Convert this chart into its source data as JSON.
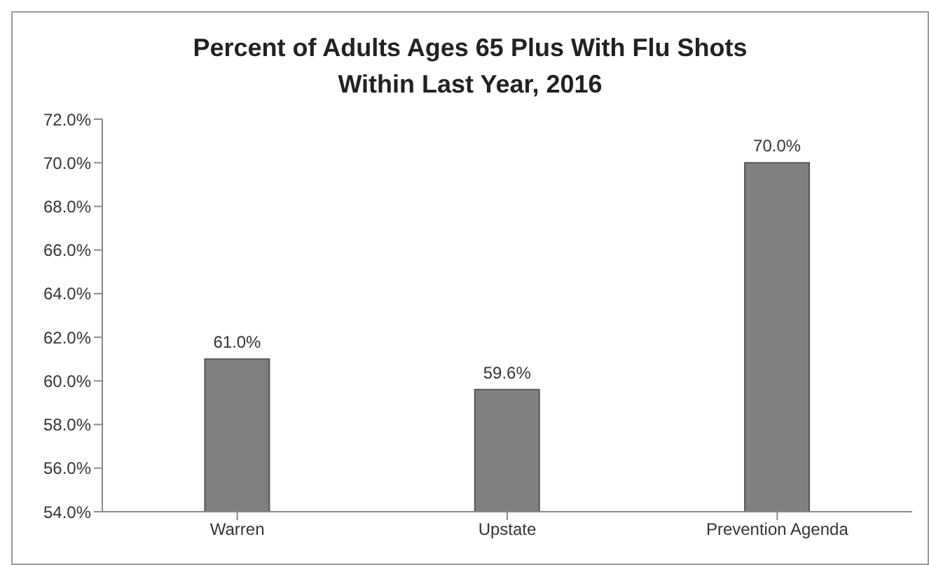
{
  "chart_data": {
    "type": "bar",
    "title": "Percent of Adults Ages 65 Plus With Flu Shots Within Last Year, 2016",
    "categories": [
      "Warren",
      "Upstate",
      "Prevention Agenda"
    ],
    "values": [
      61.0,
      59.6,
      70.0
    ],
    "value_labels": [
      "61.0%",
      "59.6%",
      "70.0%"
    ],
    "color": "#808080",
    "ylim": [
      54,
      72
    ],
    "yticks": [
      {
        "value": 54,
        "label": "54.0%"
      },
      {
        "value": 56,
        "label": "56.0%"
      },
      {
        "value": 58,
        "label": "58.0%"
      },
      {
        "value": 60,
        "label": "60.0%"
      },
      {
        "value": 62,
        "label": "62.0%"
      },
      {
        "value": 64,
        "label": "64.0%"
      },
      {
        "value": 66,
        "label": "66.0%"
      },
      {
        "value": 68,
        "label": "68.0%"
      },
      {
        "value": 70,
        "label": "70.0%"
      },
      {
        "value": 72,
        "label": "72.0%"
      }
    ],
    "grid": false,
    "legend": false
  }
}
